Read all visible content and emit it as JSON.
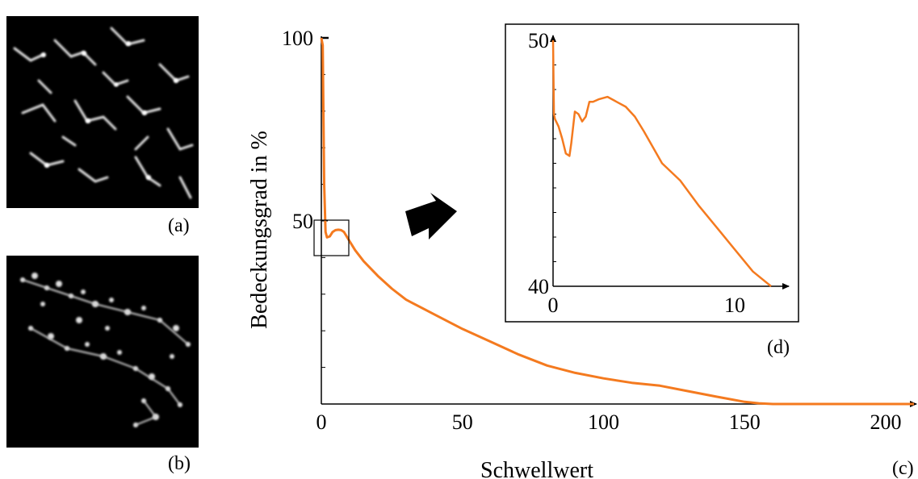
{
  "panels": {
    "a_caption": "(a)",
    "b_caption": "(b)",
    "c_caption": "(c)",
    "d_caption": "(d)"
  },
  "colors": {
    "curve": "#f47a1f",
    "background": "#ffffff",
    "axis": "#000000",
    "micrograph_bg": "#000000"
  },
  "chart_data": [
    {
      "type": "line",
      "title": "",
      "xlabel": "Schwellwert",
      "ylabel": "Bedeckungsgrad in %",
      "xlim": [
        0,
        210
      ],
      "ylim": [
        0,
        100
      ],
      "x_ticks": [
        0,
        50,
        100,
        150,
        200
      ],
      "y_ticks": [
        50,
        100
      ],
      "grid": false,
      "series": [
        {
          "x": [
            0,
            0.5,
            1,
            1.5,
            2,
            3,
            4,
            5,
            6,
            7,
            8,
            10,
            12,
            15,
            20,
            25,
            30,
            40,
            50,
            60,
            70,
            80,
            90,
            100,
            110,
            120,
            130,
            140,
            150,
            155,
            160,
            180,
            200,
            210
          ],
          "y": [
            100,
            98,
            60,
            47,
            45.5,
            45.8,
            47,
            47.5,
            47.6,
            47.5,
            47,
            44.5,
            42,
            39,
            35,
            31.5,
            28.5,
            24.5,
            20.5,
            17,
            13.5,
            10.5,
            8.5,
            7,
            5.8,
            5,
            3.5,
            2,
            0.6,
            0.2,
            0,
            0,
            0,
            0
          ]
        }
      ]
    },
    {
      "type": "line",
      "title": "",
      "xlim": [
        0,
        12
      ],
      "ylim": [
        40,
        50
      ],
      "x_ticks": [
        0,
        10
      ],
      "y_ticks": [
        40,
        50
      ],
      "grid": false,
      "series": [
        {
          "x": [
            0,
            0.05,
            0.1,
            0.3,
            0.5,
            0.7,
            0.9,
            1.0,
            1.2,
            1.4,
            1.6,
            1.8,
            2.0,
            2.2,
            2.5,
            3.0,
            3.5,
            4.0,
            4.5,
            5.0,
            6.0,
            7.0,
            8.0,
            9.0,
            10.0,
            11.0,
            12.0
          ],
          "y": [
            50,
            47,
            46.8,
            46.5,
            46.0,
            45.4,
            45.3,
            45.8,
            47.1,
            47.0,
            46.7,
            46.9,
            47.5,
            47.5,
            47.6,
            47.7,
            47.5,
            47.3,
            46.9,
            46.3,
            45.0,
            44.3,
            43.3,
            42.4,
            41.5,
            40.6,
            40.0
          ]
        }
      ]
    }
  ]
}
